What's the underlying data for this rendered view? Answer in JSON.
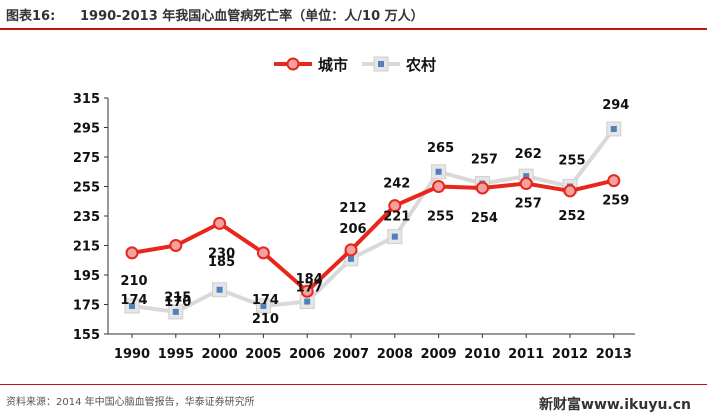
{
  "header": {
    "fig_label": "图表16:",
    "title": "1990-2013 年我国心血管病死亡率（单位：人/10 万人）"
  },
  "footer": {
    "source": "资料来源：2014 年中国心脑血管报告，华泰证券研究所",
    "watermark": "新财富www.ikuyu.cn"
  },
  "colors": {
    "urban": "#e8261c",
    "rural": "#d9d9d9",
    "rural_marker": "#4f81bd",
    "accent_rule": "#c0140e"
  },
  "chart_data": {
    "type": "line",
    "title": "1990-2013 年我国心血管病死亡率（单位：人/10 万人）",
    "xlabel": "",
    "ylabel": "",
    "categories": [
      "1990",
      "1995",
      "2000",
      "2005",
      "2006",
      "2007",
      "2008",
      "2009",
      "2010",
      "2011",
      "2012",
      "2013"
    ],
    "ylim": [
      155,
      315
    ],
    "yticks": [
      155,
      175,
      195,
      215,
      235,
      255,
      275,
      295,
      315
    ],
    "grid": false,
    "legend_position": "top-center",
    "series": [
      {
        "name": "城市",
        "values": [
          210,
          215,
          230,
          210,
          184,
          212,
          242,
          255,
          254,
          257,
          252,
          259
        ],
        "labels": [
          "210",
          "215",
          "230",
          "210",
          "184",
          "212",
          "242",
          "255",
          "254",
          "257",
          "252",
          "259"
        ]
      },
      {
        "name": "农村",
        "values": [
          174,
          170,
          185,
          174,
          177,
          206,
          221,
          265,
          257,
          262,
          255,
          294
        ],
        "labels": [
          "174",
          "170",
          "185",
          "174",
          "177",
          "206",
          "221",
          "265",
          "257",
          "262",
          "255",
          "294"
        ]
      }
    ]
  }
}
